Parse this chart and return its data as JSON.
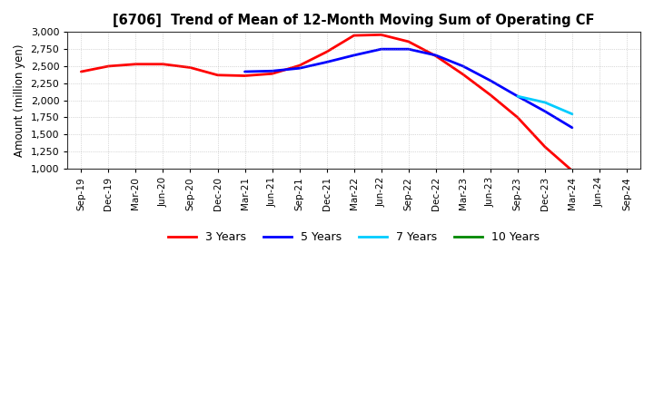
{
  "title": "[6706]  Trend of Mean of 12-Month Moving Sum of Operating CF",
  "ylabel": "Amount (million yen)",
  "bg_color": "#ffffff",
  "plot_bg_color": "#ffffff",
  "grid_color": "#999999",
  "ylim": [
    1000,
    3000
  ],
  "yticks": [
    1000,
    1250,
    1500,
    1750,
    2000,
    2250,
    2500,
    2750,
    3000
  ],
  "x_labels": [
    "Sep-19",
    "Dec-19",
    "Mar-20",
    "Jun-20",
    "Sep-20",
    "Dec-20",
    "Mar-21",
    "Jun-21",
    "Sep-21",
    "Dec-21",
    "Mar-22",
    "Jun-22",
    "Sep-22",
    "Dec-22",
    "Mar-23",
    "Jun-23",
    "Sep-23",
    "Dec-23",
    "Mar-24",
    "Jun-24",
    "Sep-24"
  ],
  "series": {
    "3 Years": {
      "color": "#ff0000",
      "values": [
        2420,
        2500,
        2530,
        2530,
        2480,
        2370,
        2360,
        2390,
        2510,
        2710,
        2950,
        2960,
        2860,
        2650,
        2380,
        2080,
        1750,
        1320,
        970,
        null,
        null
      ]
    },
    "5 Years": {
      "color": "#0000ff",
      "values": [
        null,
        null,
        null,
        null,
        null,
        null,
        2420,
        2430,
        2470,
        2560,
        2660,
        2750,
        2750,
        2660,
        2500,
        2290,
        2060,
        1840,
        1600,
        null,
        null
      ]
    },
    "7 Years": {
      "color": "#00ccff",
      "values": [
        null,
        null,
        null,
        null,
        null,
        null,
        null,
        null,
        null,
        null,
        null,
        null,
        null,
        null,
        null,
        null,
        2060,
        1970,
        1800,
        null,
        null
      ]
    },
    "10 Years": {
      "color": "#008800",
      "values": [
        null,
        null,
        null,
        null,
        null,
        null,
        null,
        null,
        null,
        null,
        null,
        null,
        null,
        null,
        null,
        null,
        null,
        null,
        null,
        null,
        null
      ]
    }
  },
  "legend": {
    "entries": [
      "3 Years",
      "5 Years",
      "7 Years",
      "10 Years"
    ],
    "colors": [
      "#ff0000",
      "#0000ff",
      "#00ccff",
      "#008800"
    ]
  }
}
